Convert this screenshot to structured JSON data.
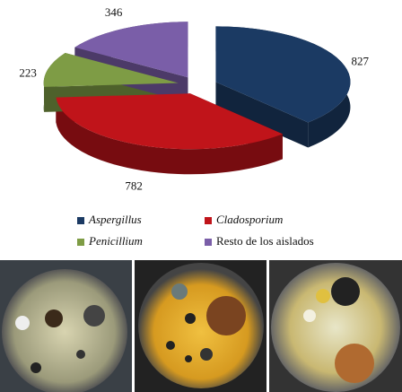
{
  "chart_data": {
    "type": "pie",
    "categories": [
      "Aspergillus",
      "Cladosporium",
      "Penicillium",
      "Resto de los aislados"
    ],
    "values": [
      827,
      782,
      223,
      346
    ],
    "colors": [
      "#1b3a63",
      "#c0141a",
      "#7e9c45",
      "#7a5ea8"
    ]
  }
}
